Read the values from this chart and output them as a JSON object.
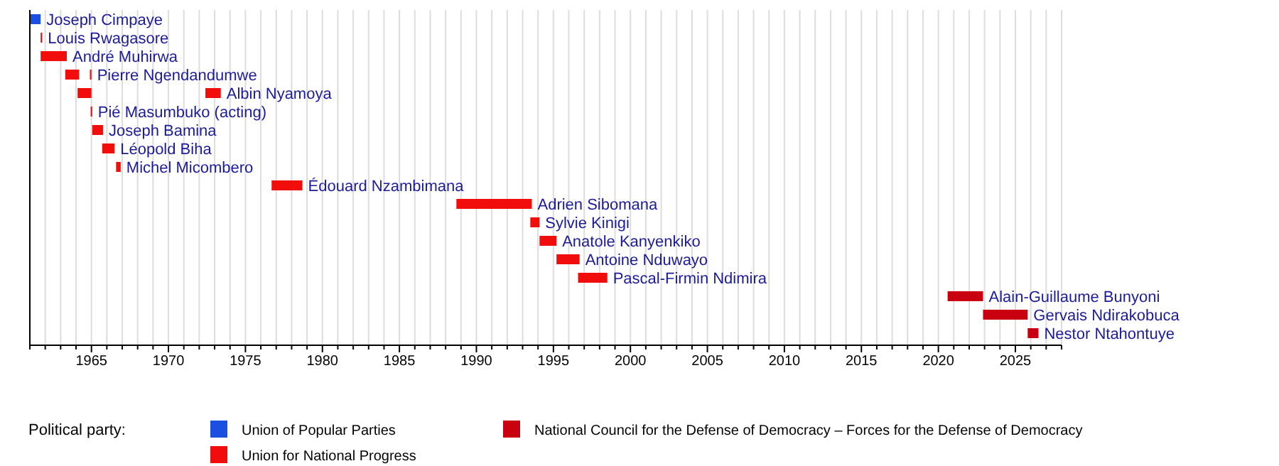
{
  "chart_data": {
    "type": "bar",
    "orientation": "horizontal",
    "legend_title": "Political party:",
    "legend": "bottom",
    "grid": "x",
    "categories": [
      "Joseph Cimpaye",
      "Louis Rwagasore",
      "André Muhirwa",
      "Pierre Ngendandumwe",
      "Albin Nyamoya",
      "Pié Masumbuko (acting)",
      "Joseph Bamina",
      "Léopold Biha",
      "Michel Micombero",
      "Édouard Nzambimana",
      "Adrien Sibomana",
      "Sylvie Kinigi",
      "Anatole Kanyenkiko",
      "Antoine Nduwayo",
      "Pascal-Firmin Ndimira",
      "Alain-Guillaume Bunyoni",
      "Gervais Ndirakobuca",
      "Nestor Ntahontuye"
    ],
    "series": [
      {
        "name": "Union of Popular Parties",
        "color": "#1b4fe0",
        "base": [
          1961.0,
          null,
          null,
          null,
          null,
          null,
          null,
          null,
          null,
          null,
          null,
          null,
          null,
          null,
          null,
          null,
          null,
          null
        ],
        "values": [
          0.7,
          null,
          null,
          null,
          null,
          null,
          null,
          null,
          null,
          null,
          null,
          null,
          null,
          null,
          null,
          null,
          null,
          null
        ]
      },
      {
        "name": "Union for National Progress",
        "color": "#f20d0d",
        "base": [
          null,
          1961.7,
          1961.7,
          1963.3,
          1964.1,
          1964.95,
          1965.05,
          1965.7,
          1966.6,
          1976.7,
          1988.7,
          1993.5,
          1994.1,
          1995.2,
          1996.6,
          null,
          null,
          null
        ],
        "values": [
          null,
          0.1,
          1.7,
          0.9,
          0.9,
          0.1,
          0.7,
          0.8,
          0.3,
          2.0,
          4.9,
          0.6,
          1.1,
          1.5,
          1.9,
          null,
          null,
          null
        ]
      },
      {
        "color": "#f20d0d",
        "base": [
          null,
          null,
          null,
          1964.9,
          1972.4,
          null,
          null,
          null,
          null,
          null,
          null,
          null,
          null,
          null,
          null,
          null,
          null,
          null
        ],
        "values": [
          null,
          null,
          null,
          0.1,
          1.0,
          null,
          null,
          null,
          null,
          null,
          null,
          null,
          null,
          null,
          null,
          null,
          null,
          null
        ]
      },
      {
        "name": "National Council for the Defense of Democracy – Forces for the Defense of Democracy",
        "color": "#c8000f",
        "base": [
          null,
          null,
          null,
          null,
          null,
          null,
          null,
          null,
          null,
          null,
          null,
          null,
          null,
          null,
          null,
          2020.6,
          2022.9,
          2025.8
        ],
        "values": [
          null,
          null,
          null,
          null,
          null,
          null,
          null,
          null,
          null,
          null,
          null,
          null,
          null,
          null,
          null,
          2.3,
          2.9,
          0.7
        ]
      }
    ],
    "xlim": [
      1961,
      2028
    ],
    "xticks": [
      {
        "value": 1961,
        "label": null
      },
      {
        "value": 1962,
        "label": null
      },
      {
        "value": 1963,
        "label": null
      },
      {
        "value": 1964,
        "label": null
      },
      1965,
      {
        "value": 1966,
        "label": null
      },
      {
        "value": 1967,
        "label": null
      },
      {
        "value": 1968,
        "label": null
      },
      {
        "value": 1969,
        "label": null
      },
      1970,
      {
        "value": 1971,
        "label": null
      },
      {
        "value": 1972,
        "label": null
      },
      {
        "value": 1973,
        "label": null
      },
      {
        "value": 1974,
        "label": null
      },
      1975,
      {
        "value": 1976,
        "label": null
      },
      {
        "value": 1977,
        "label": null
      },
      {
        "value": 1978,
        "label": null
      },
      {
        "value": 1979,
        "label": null
      },
      1980,
      {
        "value": 1981,
        "label": null
      },
      {
        "value": 1982,
        "label": null
      },
      {
        "value": 1983,
        "label": null
      },
      {
        "value": 1984,
        "label": null
      },
      1985,
      {
        "value": 1986,
        "label": null
      },
      {
        "value": 1987,
        "label": null
      },
      {
        "value": 1988,
        "label": null
      },
      {
        "value": 1989,
        "label": null
      },
      1990,
      {
        "value": 1991,
        "label": null
      },
      {
        "value": 1992,
        "label": null
      },
      {
        "value": 1993,
        "label": null
      },
      {
        "value": 1994,
        "label": null
      },
      1995,
      {
        "value": 1996,
        "label": null
      },
      {
        "value": 1997,
        "label": null
      },
      {
        "value": 1998,
        "label": null
      },
      {
        "value": 1999,
        "label": null
      },
      2000,
      {
        "value": 2001,
        "label": null
      },
      {
        "value": 2002,
        "label": null
      },
      {
        "value": 2003,
        "label": null
      },
      {
        "value": 2004,
        "label": null
      },
      2005,
      {
        "value": 2006,
        "label": null
      },
      {
        "value": 2007,
        "label": null
      },
      {
        "value": 2008,
        "label": null
      },
      {
        "value": 2009,
        "label": null
      },
      2010,
      {
        "value": 2011,
        "label": null
      },
      {
        "value": 2012,
        "label": null
      },
      {
        "value": 2013,
        "label": null
      },
      {
        "value": 2014,
        "label": null
      },
      2015,
      {
        "value": 2016,
        "label": null
      },
      {
        "value": 2017,
        "label": null
      },
      {
        "value": 2018,
        "label": null
      },
      {
        "value": 2019,
        "label": null
      },
      2020,
      {
        "value": 2021,
        "label": null
      },
      {
        "value": 2022,
        "label": null
      },
      {
        "value": 2023,
        "label": null
      },
      {
        "value": 2024,
        "label": null
      },
      2025,
      {
        "value": 2026,
        "label": null
      },
      {
        "value": 2027,
        "label": null
      },
      {
        "value": 2028,
        "label": null
      }
    ]
  }
}
